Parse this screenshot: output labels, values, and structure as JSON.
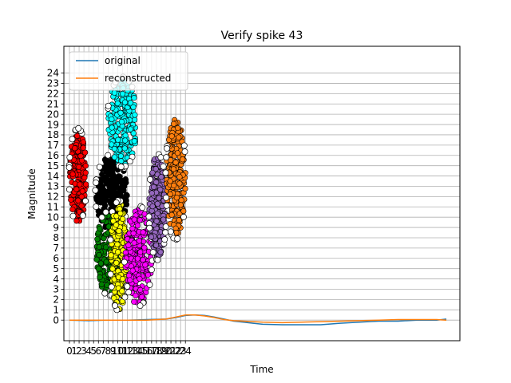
{
  "chart_data": {
    "type": "scatter",
    "title": "Verify spike 43",
    "xlabel": "Time",
    "ylabel": "Magnitude",
    "x_ticks": [
      0,
      1,
      2,
      3,
      4,
      5,
      6,
      7,
      8,
      9,
      10,
      11,
      12,
      13,
      14,
      15,
      16,
      17,
      18,
      19,
      20,
      21,
      22,
      23,
      24
    ],
    "y_ticks": [
      0,
      1,
      2,
      3,
      4,
      5,
      6,
      7,
      8,
      9,
      10,
      11,
      12,
      13,
      14,
      15,
      16,
      17,
      18,
      19,
      20,
      21,
      22,
      23,
      24
    ],
    "xlim": [
      -1.15,
      80.8
    ],
    "ylim": [
      -2.0,
      26.6
    ],
    "grid": true,
    "legend": {
      "placement": "top-left",
      "entries": [
        {
          "label": "original",
          "color": "#1f77b4"
        },
        {
          "label": "reconstructed",
          "color": "#ff7f0e"
        }
      ]
    },
    "series": [
      {
        "name": "original",
        "color": "#1f77b4",
        "x": [
          0,
          4,
          8,
          12,
          16,
          20,
          22,
          24,
          26,
          28,
          30,
          32,
          34,
          36,
          38,
          40,
          44,
          48,
          52,
          56,
          60,
          64,
          68,
          72,
          76,
          78
        ],
        "y": [
          0.0,
          -0.05,
          0.0,
          0.0,
          0.05,
          0.1,
          0.25,
          0.45,
          0.5,
          0.45,
          0.3,
          0.1,
          -0.1,
          -0.2,
          -0.3,
          -0.4,
          -0.45,
          -0.45,
          -0.45,
          -0.3,
          -0.2,
          -0.1,
          -0.1,
          0.0,
          0.0,
          0.1
        ]
      },
      {
        "name": "reconstructed",
        "color": "#ff7f0e",
        "x": [
          0,
          4,
          8,
          12,
          16,
          20,
          22,
          24,
          26,
          28,
          30,
          32,
          34,
          36,
          38,
          40,
          44,
          48,
          52,
          56,
          60,
          64,
          68,
          72,
          76,
          78
        ],
        "y": [
          0.0,
          0.0,
          0.0,
          0.0,
          0.0,
          0.1,
          0.3,
          0.5,
          0.5,
          0.4,
          0.25,
          0.05,
          -0.05,
          -0.1,
          -0.15,
          -0.2,
          -0.25,
          -0.2,
          -0.15,
          -0.1,
          -0.05,
          0.0,
          0.05,
          0.05,
          0.05,
          0.0
        ]
      }
    ],
    "clusters": [
      {
        "color": "#ff0000",
        "x_range": [
          0.0,
          3.5
        ],
        "y_range": [
          9.5,
          18.5
        ]
      },
      {
        "color": "#000000",
        "x_range": [
          5.5,
          12.0
        ],
        "y_range": [
          8.5,
          16.0
        ]
      },
      {
        "color": "#008000",
        "x_range": [
          5.5,
          11.0
        ],
        "y_range": [
          2.5,
          10.5
        ]
      },
      {
        "color": "#ffff00",
        "x_range": [
          8.5,
          12.0
        ],
        "y_range": [
          1.0,
          11.5
        ]
      },
      {
        "color": "#00ffff",
        "x_range": [
          8.0,
          14.0
        ],
        "y_range": [
          15.0,
          23.5
        ]
      },
      {
        "color": "#ff00ff",
        "x_range": [
          11.5,
          17.0
        ],
        "y_range": [
          1.5,
          11.0
        ]
      },
      {
        "color": "#9467bd",
        "x_range": [
          16.5,
          20.0
        ],
        "y_range": [
          6.0,
          16.0
        ]
      },
      {
        "color": "#ff7f0e",
        "x_range": [
          20.0,
          24.0
        ],
        "y_range": [
          8.0,
          19.5
        ]
      }
    ]
  }
}
